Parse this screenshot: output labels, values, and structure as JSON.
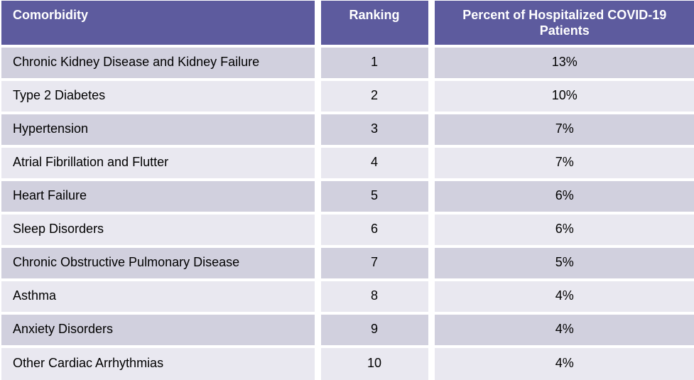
{
  "colors": {
    "header_bg": "#5d5b9e",
    "header_text": "#ffffff",
    "row_dark": "#d1d0de",
    "row_light": "#e9e8f0",
    "body_text": "#000000",
    "divider": "#ffffff"
  },
  "table": {
    "columns": [
      {
        "label": "Comorbidity"
      },
      {
        "label": "Ranking"
      },
      {
        "label": "Percent of Hospitalized COVID-19 Patients"
      }
    ],
    "rows": [
      {
        "comorbidity": "Chronic Kidney Disease and Kidney Failure",
        "ranking": "1",
        "percent": "13%"
      },
      {
        "comorbidity": "Type 2 Diabetes",
        "ranking": "2",
        "percent": "10%"
      },
      {
        "comorbidity": "Hypertension",
        "ranking": "3",
        "percent": "7%"
      },
      {
        "comorbidity": "Atrial Fibrillation and Flutter",
        "ranking": "4",
        "percent": "7%"
      },
      {
        "comorbidity": "Heart Failure",
        "ranking": "5",
        "percent": "6%"
      },
      {
        "comorbidity": "Sleep Disorders",
        "ranking": "6",
        "percent": "6%"
      },
      {
        "comorbidity": "Chronic Obstructive Pulmonary Disease",
        "ranking": "7",
        "percent": "5%"
      },
      {
        "comorbidity": "Asthma",
        "ranking": "8",
        "percent": "4%"
      },
      {
        "comorbidity": "Anxiety Disorders",
        "ranking": "9",
        "percent": "4%"
      },
      {
        "comorbidity": "Other Cardiac Arrhythmias",
        "ranking": "10",
        "percent": "4%"
      }
    ]
  },
  "chart_data": {
    "type": "table",
    "title": "",
    "columns": [
      "Comorbidity",
      "Ranking",
      "Percent of Hospitalized COVID-19 Patients"
    ],
    "rows": [
      [
        "Chronic Kidney Disease and Kidney Failure",
        1,
        "13%"
      ],
      [
        "Type 2 Diabetes",
        2,
        "10%"
      ],
      [
        "Hypertension",
        3,
        "7%"
      ],
      [
        "Atrial Fibrillation and Flutter",
        4,
        "7%"
      ],
      [
        "Heart Failure",
        5,
        "6%"
      ],
      [
        "Sleep Disorders",
        6,
        "6%"
      ],
      [
        "Chronic Obstructive Pulmonary Disease",
        7,
        "5%"
      ],
      [
        "Asthma",
        8,
        "4%"
      ],
      [
        "Anxiety Disorders",
        9,
        "4%"
      ],
      [
        "Other Cardiac Arrhythmias",
        10,
        "4%"
      ]
    ]
  }
}
